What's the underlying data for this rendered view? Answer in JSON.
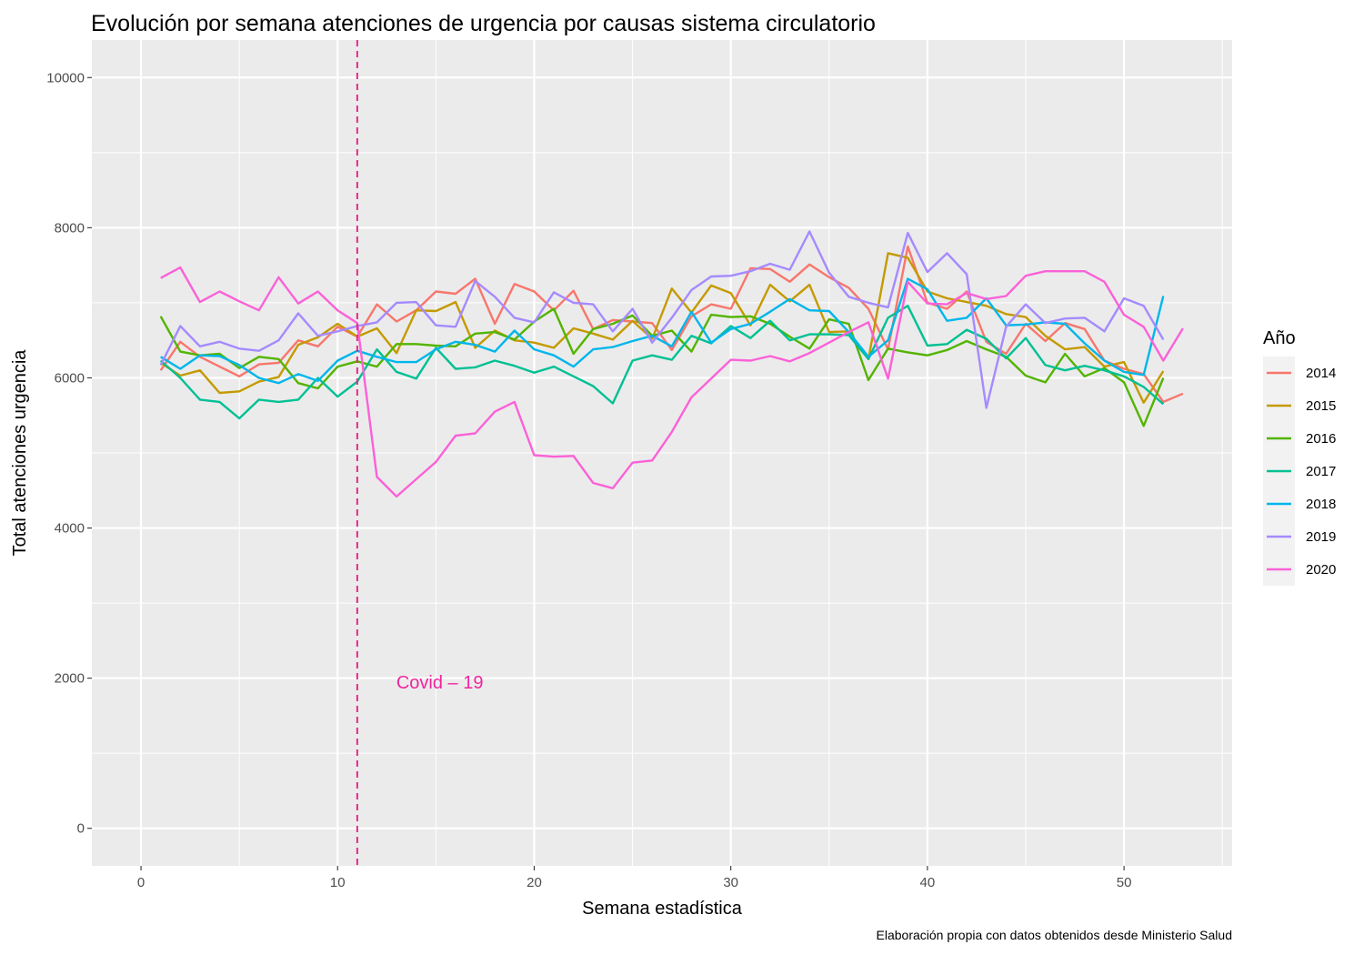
{
  "chart_data": {
    "type": "line",
    "title": "Evolución por semana atenciones de urgencia por causas sistema circulatorio",
    "xlabel": "Semana estadística",
    "ylabel": "Total atenciones urgencia",
    "caption": "Elaboración propia con datos obtenidos desde Ministerio Salud",
    "xlim": [
      -2.5,
      55.5
    ],
    "ylim": [
      -500,
      10500
    ],
    "x_ticks": [
      0,
      10,
      20,
      30,
      40,
      50
    ],
    "x_tick_labels": [
      "0",
      "10",
      "20",
      "30",
      "40",
      "50"
    ],
    "y_ticks": [
      0,
      2000,
      4000,
      6000,
      8000,
      10000
    ],
    "y_tick_labels": [
      "0",
      "2000",
      "4000",
      "6000",
      "8000",
      "10000"
    ],
    "grid": true,
    "legend": {
      "title": "Año",
      "position": "right"
    },
    "annotation": {
      "text": "Covid – 19",
      "x": 15.2,
      "y": 1950,
      "color": "#F0259D"
    },
    "vline": {
      "x": 11,
      "color": "#E7298A",
      "style": "dashed"
    },
    "series": [
      {
        "name": "2014",
        "color": "#F8766D",
        "x": [
          1,
          2,
          3,
          4,
          5,
          6,
          7,
          8,
          9,
          10,
          11,
          12,
          13,
          14,
          15,
          16,
          17,
          18,
          19,
          20,
          21,
          22,
          23,
          24,
          25,
          26,
          27,
          28,
          29,
          30,
          31,
          32,
          33,
          34,
          35,
          36,
          37,
          38,
          39,
          40,
          41,
          42,
          43,
          44,
          45,
          46,
          47,
          48,
          49,
          50,
          51,
          52,
          53
        ],
        "values": [
          6100,
          6480,
          6280,
          6150,
          6020,
          6180,
          6200,
          6500,
          6420,
          6680,
          6550,
          6980,
          6750,
          6900,
          7150,
          7120,
          7320,
          6720,
          7250,
          7150,
          6900,
          7160,
          6650,
          6770,
          6750,
          6730,
          6370,
          6820,
          6980,
          6920,
          7460,
          7450,
          7280,
          7510,
          7340,
          7200,
          6920,
          6380,
          7750,
          7000,
          6920,
          7150,
          6480,
          6320,
          6720,
          6490,
          6730,
          6650,
          6230,
          6120,
          6050,
          5680,
          5790
        ]
      },
      {
        "name": "2015",
        "color": "#C49A00",
        "x": [
          1,
          2,
          3,
          4,
          5,
          6,
          7,
          8,
          9,
          10,
          11,
          12,
          13,
          14,
          15,
          16,
          17,
          18,
          19,
          20,
          21,
          22,
          23,
          24,
          25,
          26,
          27,
          28,
          29,
          30,
          31,
          32,
          33,
          34,
          35,
          36,
          37,
          38,
          39,
          40,
          41,
          42,
          43,
          44,
          45,
          46,
          47,
          48,
          49,
          50,
          51,
          52
        ],
        "values": [
          6200,
          6030,
          6100,
          5800,
          5820,
          5950,
          6010,
          6440,
          6540,
          6720,
          6550,
          6660,
          6330,
          6900,
          6890,
          7010,
          6400,
          6630,
          6500,
          6470,
          6400,
          6660,
          6590,
          6510,
          6760,
          6520,
          7190,
          6870,
          7230,
          7130,
          6700,
          7240,
          7020,
          7240,
          6610,
          6620,
          6250,
          7660,
          7600,
          7150,
          7060,
          7010,
          6960,
          6850,
          6810,
          6560,
          6380,
          6410,
          6150,
          6210,
          5670,
          6090
        ]
      },
      {
        "name": "2016",
        "color": "#53B400",
        "x": [
          1,
          2,
          3,
          4,
          5,
          6,
          7,
          8,
          9,
          10,
          11,
          12,
          13,
          14,
          15,
          16,
          17,
          18,
          19,
          20,
          21,
          22,
          23,
          24,
          25,
          26,
          27,
          28,
          29,
          30,
          31,
          32,
          33,
          34,
          35,
          36,
          37,
          38,
          39,
          40,
          41,
          42,
          43,
          44,
          45,
          46,
          47,
          48,
          49,
          50,
          51,
          52
        ],
        "values": [
          6820,
          6350,
          6300,
          6320,
          6130,
          6280,
          6250,
          5930,
          5860,
          6150,
          6220,
          6150,
          6450,
          6450,
          6430,
          6420,
          6590,
          6610,
          6510,
          6750,
          6920,
          6320,
          6650,
          6720,
          6830,
          6560,
          6630,
          6350,
          6840,
          6810,
          6820,
          6720,
          6550,
          6390,
          6780,
          6720,
          5970,
          6390,
          6340,
          6300,
          6370,
          6490,
          6380,
          6280,
          6030,
          5940,
          6320,
          6020,
          6130,
          5940,
          5360,
          6000
        ]
      },
      {
        "name": "2017",
        "color": "#00C094",
        "x": [
          1,
          2,
          3,
          4,
          5,
          6,
          7,
          8,
          9,
          10,
          11,
          12,
          13,
          14,
          15,
          16,
          17,
          18,
          19,
          20,
          21,
          22,
          23,
          24,
          25,
          26,
          27,
          28,
          29,
          30,
          31,
          32,
          33,
          34,
          35,
          36,
          37,
          38,
          39,
          40,
          41,
          42,
          43,
          44,
          45,
          46,
          47,
          48,
          49,
          50,
          51,
          52
        ],
        "values": [
          6230,
          6000,
          5710,
          5680,
          5460,
          5710,
          5680,
          5710,
          6000,
          5750,
          5950,
          6380,
          6080,
          5990,
          6400,
          6120,
          6140,
          6230,
          6160,
          6070,
          6150,
          6020,
          5890,
          5660,
          6230,
          6300,
          6240,
          6560,
          6460,
          6690,
          6530,
          6760,
          6500,
          6580,
          6580,
          6570,
          6250,
          6800,
          6960,
          6430,
          6450,
          6640,
          6520,
          6260,
          6530,
          6170,
          6100,
          6160,
          6100,
          6020,
          5880,
          5650
        ]
      },
      {
        "name": "2018",
        "color": "#00B6EB",
        "x": [
          1,
          2,
          3,
          4,
          5,
          6,
          7,
          8,
          9,
          10,
          11,
          12,
          13,
          14,
          15,
          16,
          17,
          18,
          19,
          20,
          21,
          22,
          23,
          24,
          25,
          26,
          27,
          28,
          29,
          30,
          31,
          32,
          33,
          34,
          35,
          36,
          37,
          38,
          39,
          40,
          41,
          42,
          43,
          44,
          45,
          46,
          47,
          48,
          49,
          50,
          51,
          52
        ],
        "values": [
          6280,
          6120,
          6300,
          6290,
          6170,
          6000,
          5930,
          6050,
          5960,
          6230,
          6360,
          6280,
          6210,
          6210,
          6380,
          6480,
          6440,
          6350,
          6630,
          6380,
          6300,
          6150,
          6380,
          6410,
          6490,
          6560,
          6420,
          6880,
          6470,
          6650,
          6720,
          6880,
          7050,
          6900,
          6890,
          6610,
          6280,
          6500,
          7320,
          7180,
          6760,
          6800,
          7060,
          6700,
          6710,
          6740,
          6720,
          6460,
          6230,
          6080,
          6040,
          7090
        ]
      },
      {
        "name": "2019",
        "color": "#A58AFF",
        "x": [
          1,
          2,
          3,
          4,
          5,
          6,
          7,
          8,
          9,
          10,
          11,
          12,
          13,
          14,
          15,
          16,
          17,
          18,
          19,
          20,
          21,
          22,
          23,
          24,
          25,
          26,
          27,
          28,
          29,
          30,
          31,
          32,
          33,
          34,
          35,
          36,
          37,
          38,
          39,
          40,
          41,
          42,
          43,
          44,
          45,
          46,
          47,
          48,
          49,
          50,
          51,
          52
        ],
        "values": [
          6170,
          6690,
          6420,
          6480,
          6390,
          6360,
          6500,
          6860,
          6560,
          6620,
          6690,
          6740,
          7000,
          7010,
          6700,
          6680,
          7290,
          7080,
          6800,
          6740,
          7140,
          7000,
          6980,
          6620,
          6920,
          6470,
          6800,
          7170,
          7350,
          7360,
          7420,
          7520,
          7440,
          7950,
          7400,
          7080,
          7000,
          6940,
          7930,
          7410,
          7660,
          7380,
          5600,
          6680,
          6980,
          6730,
          6790,
          6800,
          6620,
          7060,
          6960,
          6510
        ]
      },
      {
        "name": "2020",
        "color": "#FB61D7",
        "x": [
          1,
          2,
          3,
          4,
          5,
          6,
          7,
          8,
          9,
          10,
          11,
          12,
          13,
          14,
          15,
          16,
          17,
          18,
          19,
          20,
          21,
          22,
          23,
          24,
          25,
          26,
          27,
          28,
          29,
          30,
          31,
          32,
          33,
          34,
          35,
          36,
          37,
          38,
          39,
          40,
          41,
          42,
          43,
          44,
          45,
          46,
          47,
          48,
          49,
          50,
          51,
          52,
          53
        ],
        "values": [
          7330,
          7470,
          7010,
          7150,
          7020,
          6900,
          7340,
          6990,
          7150,
          6900,
          6730,
          4680,
          4420,
          4650,
          4880,
          5230,
          5260,
          5550,
          5680,
          4970,
          4950,
          4960,
          4600,
          4530,
          4870,
          4900,
          5280,
          5740,
          5990,
          6240,
          6230,
          6290,
          6220,
          6330,
          6470,
          6610,
          6740,
          5990,
          7280,
          6990,
          6980,
          7130,
          7050,
          7090,
          7360,
          7420,
          7420,
          7420,
          7280,
          6840,
          6680,
          6230,
          6660
        ]
      }
    ]
  }
}
